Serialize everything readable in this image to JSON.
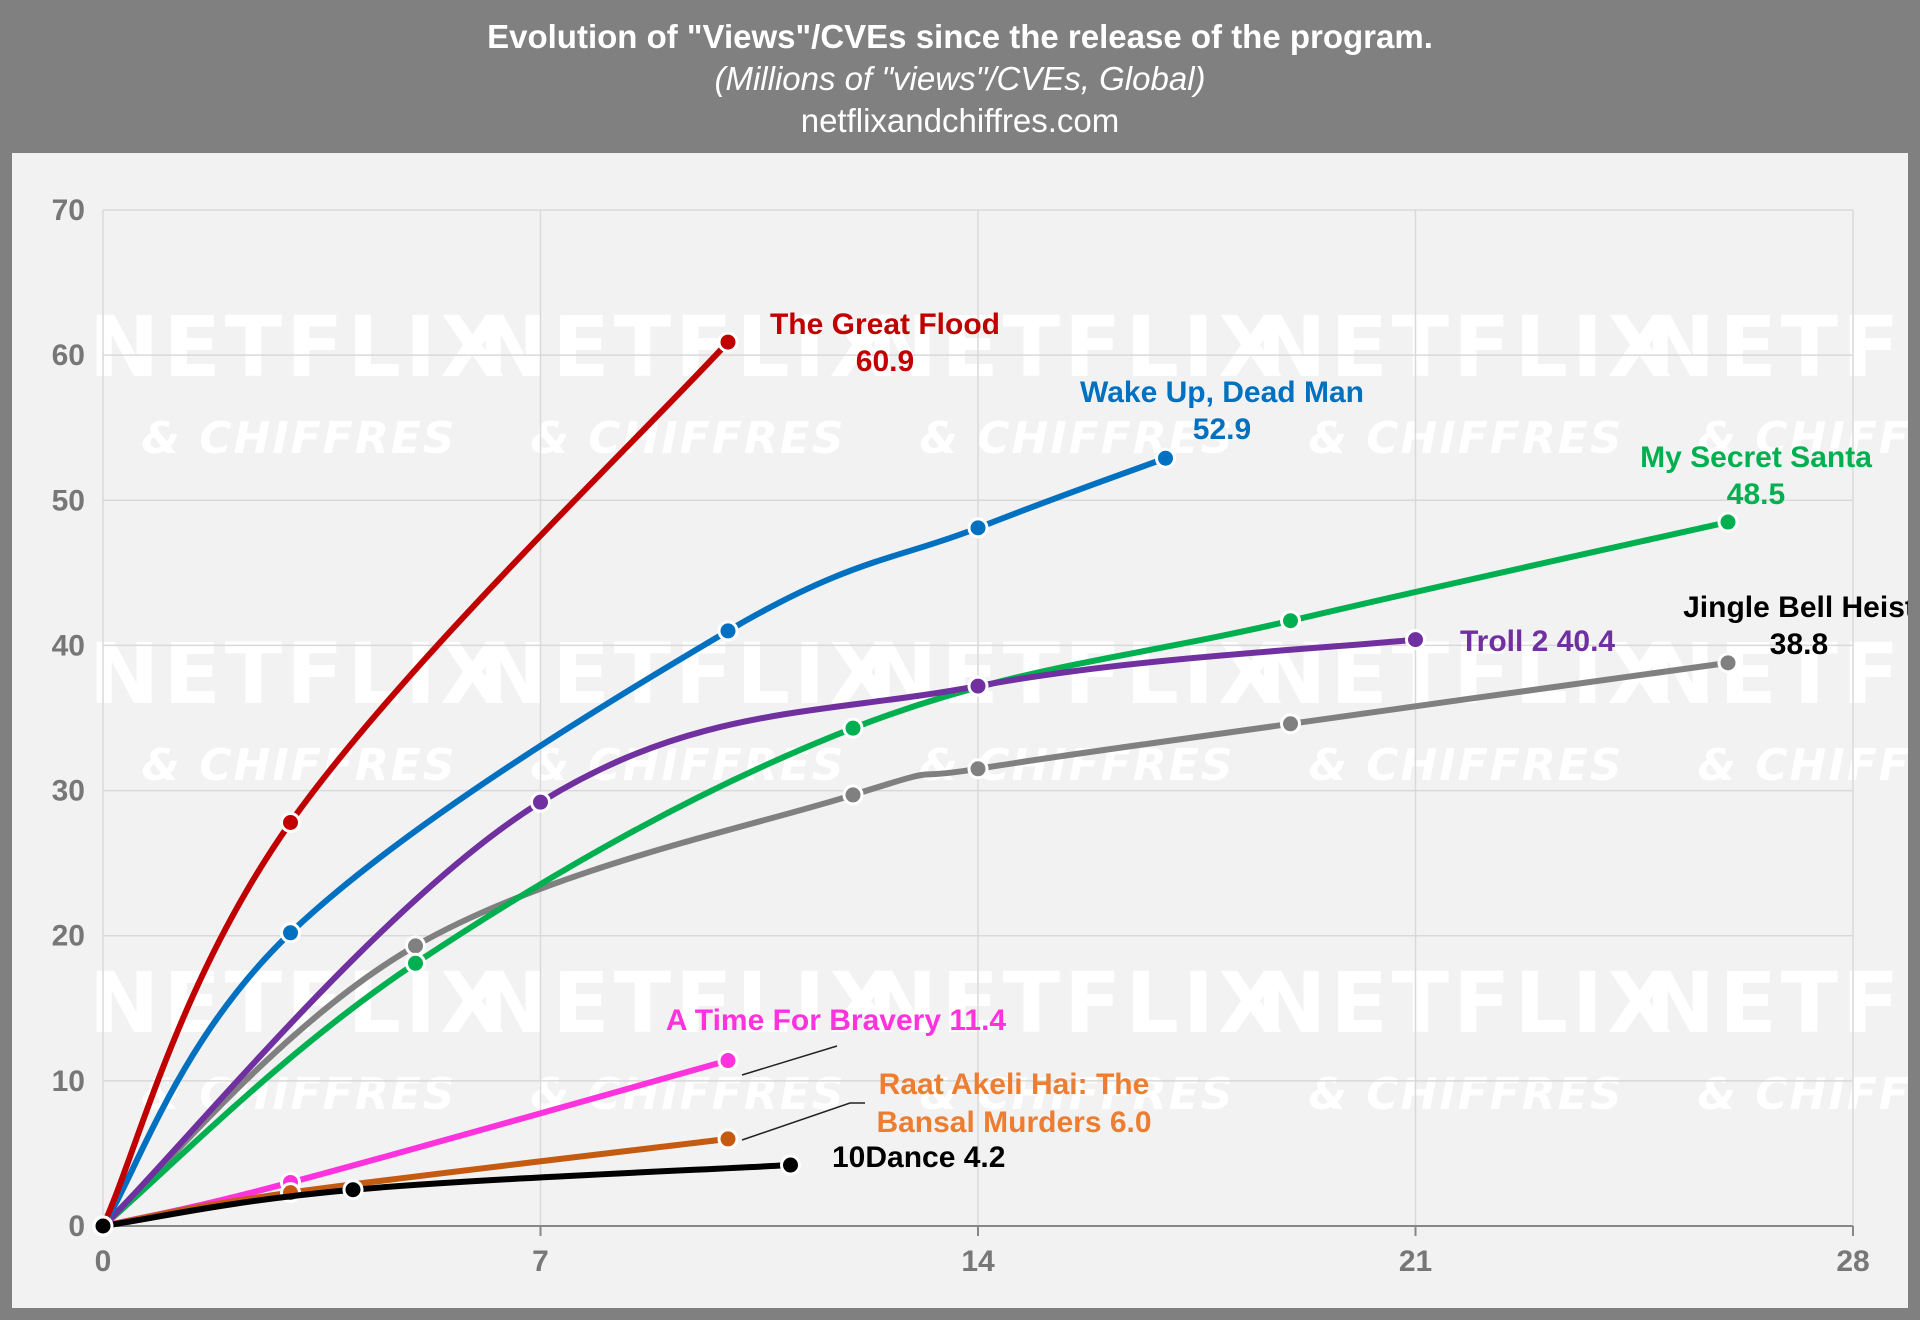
{
  "header": {
    "title": "Evolution of \"Views\"/CVEs since the release of the program.",
    "subtitle": "(Millions of \"views\"/CVEs, Global)",
    "source": "netflixandchiffres.com"
  },
  "watermark": {
    "line1": "NETFLIX",
    "line2": "& CHIFFRES"
  },
  "chart_data": {
    "type": "line",
    "title": "Evolution of \"Views\"/CVEs since the release of the program.",
    "subtitle": "(Millions of \"views\"/CVEs, Global)",
    "xlabel": "",
    "ylabel": "",
    "xlim": [
      0,
      28
    ],
    "ylim": [
      0,
      70
    ],
    "xticks": [
      0,
      7,
      14,
      21,
      28
    ],
    "yticks": [
      0,
      10,
      20,
      30,
      40,
      50,
      60,
      70
    ],
    "grid": true,
    "series": [
      {
        "name": "The Great Flood",
        "label_lines": [
          "The Great Flood",
          "60.9"
        ],
        "color": "#c00000",
        "points": [
          [
            0,
            0
          ],
          [
            3,
            27.8
          ],
          [
            10,
            60.9
          ]
        ]
      },
      {
        "name": "Wake Up, Dead Man",
        "label_lines": [
          "Wake Up, Dead Man",
          "52.9"
        ],
        "color": "#0070c0",
        "points": [
          [
            0,
            0
          ],
          [
            3,
            20.2
          ],
          [
            10,
            41.0
          ],
          [
            14,
            48.1
          ],
          [
            17,
            52.9
          ]
        ]
      },
      {
        "name": "My Secret Santa",
        "label_lines": [
          "My Secret Santa",
          "48.5"
        ],
        "color": "#00b050",
        "points": [
          [
            0,
            0
          ],
          [
            5,
            18.1
          ],
          [
            12,
            34.3
          ],
          [
            19,
            41.7
          ],
          [
            26,
            48.5
          ]
        ]
      },
      {
        "name": "Troll 2",
        "label_lines": [
          "Troll 2 40.4"
        ],
        "color": "#7030a0",
        "points": [
          [
            0,
            0
          ],
          [
            7,
            29.2
          ],
          [
            14,
            37.2
          ],
          [
            21,
            40.4
          ]
        ]
      },
      {
        "name": "Jingle Bell Heist",
        "label_lines": [
          "Jingle Bell Heist",
          "38.8"
        ],
        "color": "#808080",
        "label_color": "#000000",
        "points": [
          [
            0,
            0
          ],
          [
            5,
            19.3
          ],
          [
            12,
            29.7
          ],
          [
            14,
            31.5
          ],
          [
            19,
            34.6
          ],
          [
            26,
            38.8
          ]
        ]
      },
      {
        "name": "A Time For Bravery",
        "label_lines": [
          "A Time For Bravery 11.4"
        ],
        "color": "#ff33dd",
        "points": [
          [
            0,
            0
          ],
          [
            3,
            3.0
          ],
          [
            10,
            11.4
          ]
        ]
      },
      {
        "name": "Raat Akeli Hai: The Bansal Murders",
        "label_lines": [
          "Raat Akeli Hai: The",
          "Bansal Murders 6.0"
        ],
        "color": "#c55a11",
        "label_color": "#ed7d31",
        "points": [
          [
            0,
            0
          ],
          [
            3,
            2.3
          ],
          [
            10,
            6.0
          ]
        ]
      },
      {
        "name": "10Dance",
        "label_lines": [
          "10Dance 4.2"
        ],
        "color": "#000000",
        "points": [
          [
            0,
            0
          ],
          [
            4,
            2.5
          ],
          [
            11,
            4.2
          ]
        ]
      }
    ]
  }
}
